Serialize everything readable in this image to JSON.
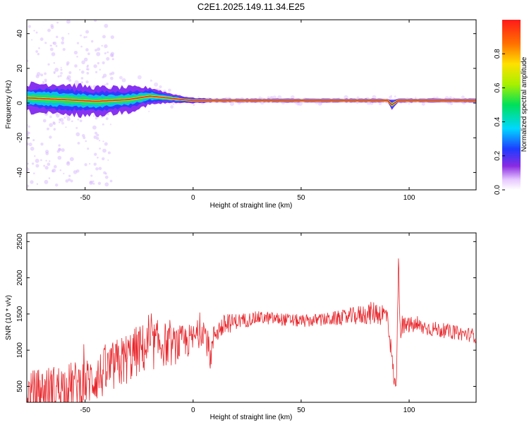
{
  "title": "C2E1.2025.149.11.34.E25",
  "colors": {
    "snr_line": "#e8262b",
    "ridge": "#e8262b",
    "frame": "#000000"
  },
  "chart_data": [
    {
      "type": "heatmap",
      "xlabel": "Height of straight line (km)",
      "ylabel": "Frequency (Hz)",
      "xlim": [
        -77,
        131
      ],
      "ylim": [
        -50,
        48
      ],
      "xticks": [
        -50,
        0,
        50,
        100
      ],
      "yticks": [
        -40,
        -20,
        0,
        20,
        40
      ],
      "colorbar": {
        "label": "Normalized spectral amplitude",
        "range": [
          0,
          1
        ],
        "ticks": [
          "0.0",
          "0.2",
          "0.4",
          "0.6",
          "0.8"
        ],
        "colormap": "rainbow (white→violet→blue→cyan→green→yellow→red)"
      },
      "ridge": {
        "x": [
          -77,
          -60,
          -45,
          -30,
          -20,
          -12,
          -5,
          0,
          10,
          20,
          40,
          60,
          80,
          90,
          92,
          95,
          100,
          131
        ],
        "freq_hz": [
          3,
          2,
          1,
          2,
          4,
          3,
          2,
          1.5,
          1.5,
          1.5,
          1.5,
          1.5,
          1.5,
          1.5,
          -1,
          1.5,
          1.5,
          1.5
        ],
        "spread_hz": [
          8,
          9,
          8,
          7,
          5,
          3,
          2,
          1.5,
          1,
          1,
          1,
          1,
          1,
          1,
          3,
          1,
          1,
          1
        ]
      }
    },
    {
      "type": "line",
      "xlabel": "Height of straight line (km)",
      "ylabel": "SNR (10 * v/v)",
      "xlim": [
        -77,
        131
      ],
      "ylim": [
        280,
        2620
      ],
      "xticks": [
        -50,
        0,
        50,
        100
      ],
      "yticks": [
        500,
        1000,
        1500,
        2000,
        2500
      ],
      "series": [
        {
          "x": [
            -77,
            -70,
            -60,
            -50,
            -45,
            -40,
            -35,
            -30,
            -25,
            -20,
            -15,
            -10,
            -5,
            0,
            5,
            8,
            10,
            15,
            20,
            25,
            30,
            40,
            50,
            60,
            70,
            80,
            85,
            90,
            93,
            94,
            95,
            96,
            100,
            110,
            120,
            131
          ],
          "values": [
            400,
            450,
            500,
            550,
            620,
            700,
            800,
            900,
            1000,
            1050,
            1100,
            1050,
            1100,
            1150,
            1300,
            900,
            1250,
            1350,
            1400,
            1420,
            1450,
            1430,
            1400,
            1420,
            1450,
            1500,
            1520,
            1480,
            600,
            450,
            2200,
            1300,
            1350,
            1300,
            1250,
            1200
          ],
          "noise": [
            300,
            320,
            320,
            330,
            340,
            360,
            370,
            370,
            360,
            350,
            330,
            280,
            250,
            220,
            200,
            200,
            170,
            150,
            110,
            100,
            90,
            90,
            90,
            90,
            110,
            150,
            170,
            160,
            120,
            100,
            200,
            140,
            120,
            110,
            100,
            100
          ]
        }
      ]
    }
  ]
}
